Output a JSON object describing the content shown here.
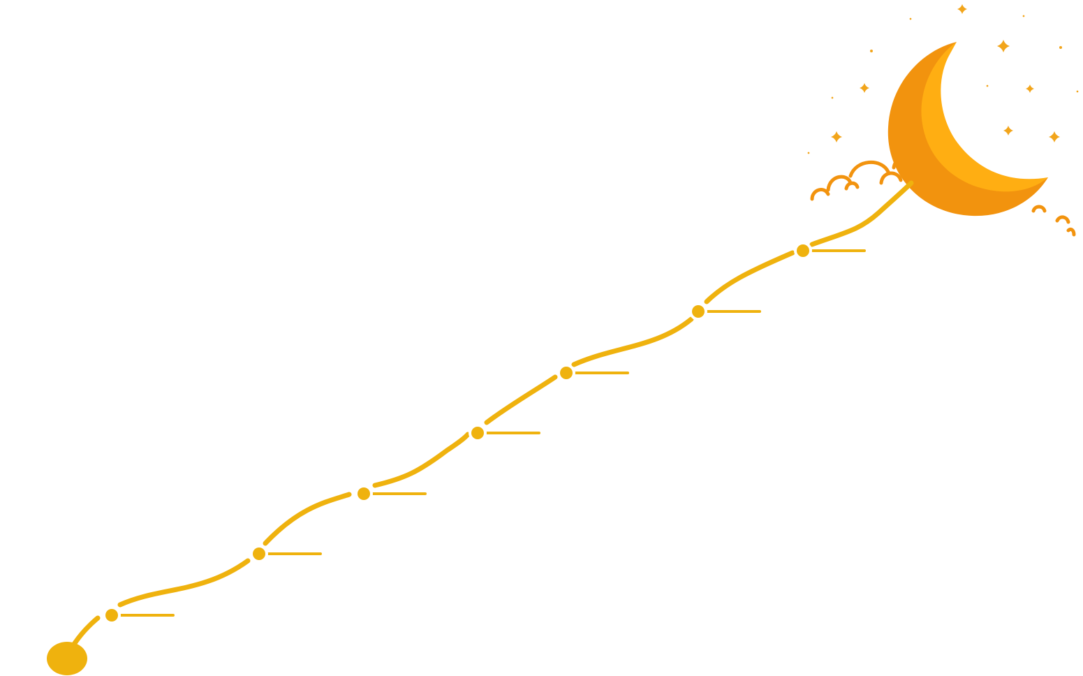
{
  "diagram": {
    "type": "journey-path-to-moon",
    "milestone_count": 7,
    "milestones": [
      {
        "label": ""
      },
      {
        "label": ""
      },
      {
        "label": ""
      },
      {
        "label": ""
      },
      {
        "label": ""
      },
      {
        "label": ""
      },
      {
        "label": ""
      }
    ]
  },
  "colors": {
    "path": "#EFB20E",
    "moon_outer": "#F2930E",
    "moon_inner": "#FFAE12",
    "cloud": "#F2930E",
    "stars": "#F2A51B",
    "background": "#FFFFFF"
  },
  "icons": {
    "start": "start-dot-icon",
    "moon": "crescent-moon-icon",
    "clouds": "cloud-icon",
    "stars": "star-icon"
  }
}
